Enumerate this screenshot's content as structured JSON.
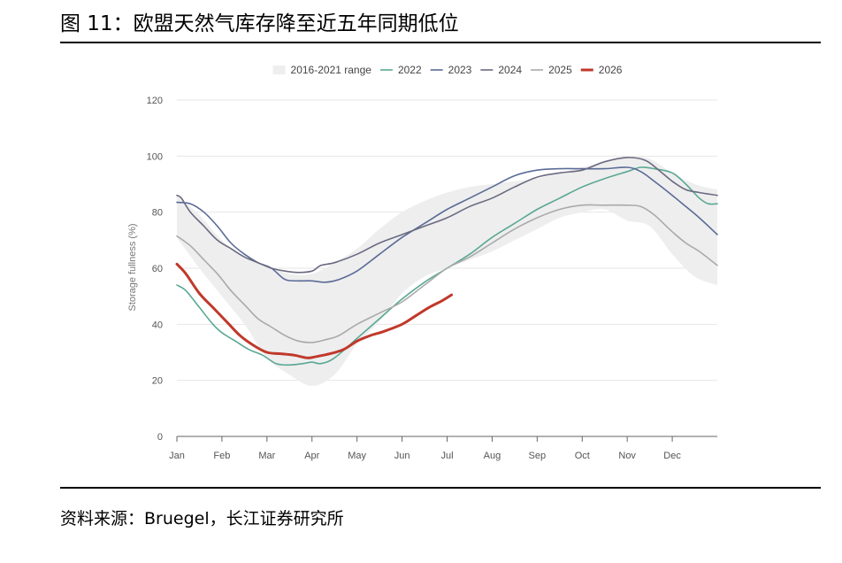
{
  "figure": {
    "title": "图 11：欧盟天然气库存降至近五年同期低位",
    "source": "资料来源：Bruegel，长江证券研究所"
  },
  "chart_data": {
    "type": "line",
    "title": "",
    "xlabel": "",
    "ylabel": "Storage fullness (%)",
    "ylim": [
      0,
      120
    ],
    "yticks": [
      0,
      20,
      40,
      60,
      80,
      100,
      120
    ],
    "xlim": [
      0,
      12
    ],
    "xticks": [
      {
        "x": 0,
        "label": "Jan"
      },
      {
        "x": 1,
        "label": "Feb"
      },
      {
        "x": 2,
        "label": "Mar"
      },
      {
        "x": 3,
        "label": "Apr"
      },
      {
        "x": 4,
        "label": "May"
      },
      {
        "x": 5,
        "label": "Jun"
      },
      {
        "x": 6,
        "label": "Jul"
      },
      {
        "x": 7,
        "label": "Aug"
      },
      {
        "x": 8,
        "label": "Sep"
      },
      {
        "x": 9,
        "label": "Oct"
      },
      {
        "x": 10,
        "label": "Nov"
      },
      {
        "x": 11,
        "label": "Dec"
      }
    ],
    "grid": "horizontal",
    "legend_position": "top",
    "range": {
      "name": "2016-2021 range",
      "color": "#eeeeee",
      "x": [
        0,
        0.5,
        1,
        1.5,
        2,
        2.5,
        3,
        3.5,
        4,
        4.5,
        5,
        5.5,
        6,
        6.5,
        7,
        7.5,
        8,
        8.5,
        9,
        9.5,
        10,
        10.5,
        11,
        11.5,
        12
      ],
      "upper": [
        86,
        79,
        70,
        64,
        61,
        58,
        58,
        62,
        67,
        74,
        80,
        84,
        87,
        89,
        90,
        91,
        92,
        94,
        96,
        98,
        100,
        99,
        94,
        90,
        88
      ],
      "lower": [
        71,
        60,
        50,
        40,
        28,
        22,
        18,
        22,
        33,
        41,
        51,
        57,
        60,
        63,
        66,
        70,
        74,
        78,
        80,
        81,
        77,
        75,
        65,
        57,
        54
      ]
    },
    "series": [
      {
        "name": "2022",
        "color": "#5aa894",
        "width": 1.6,
        "x": [
          0,
          0.2,
          0.5,
          0.8,
          1.0,
          1.3,
          1.6,
          1.9,
          2.2,
          2.5,
          2.8,
          3.0,
          3.2,
          3.5,
          4.0,
          4.5,
          5.0,
          5.5,
          6.0,
          6.5,
          7.0,
          7.5,
          8.0,
          8.5,
          9.0,
          9.5,
          10.0,
          10.3,
          10.6,
          11.0,
          11.3,
          11.6,
          11.8,
          12.0
        ],
        "y": [
          54,
          52,
          46,
          40,
          37,
          34,
          31,
          29,
          26,
          25.5,
          26,
          26.5,
          26,
          28,
          35,
          42,
          49,
          55,
          60,
          65,
          71,
          76,
          81,
          85,
          89,
          92,
          94.5,
          96,
          95.5,
          94,
          90,
          85,
          83,
          83
        ]
      },
      {
        "name": "2023",
        "color": "#5a6b96",
        "width": 1.6,
        "x": [
          0,
          0.3,
          0.6,
          0.9,
          1.2,
          1.5,
          1.8,
          2.1,
          2.4,
          2.7,
          3.0,
          3.3,
          3.6,
          4.0,
          4.5,
          5.0,
          5.5,
          6.0,
          6.5,
          7.0,
          7.5,
          8.0,
          8.5,
          9.0,
          9.5,
          10.0,
          10.3,
          10.6,
          11.0,
          11.3,
          11.6,
          12.0
        ],
        "y": [
          83.5,
          83,
          80,
          75,
          69,
          65,
          62,
          60,
          56,
          55.5,
          55.5,
          55,
          56,
          59,
          65,
          71,
          76,
          81,
          85,
          89,
          93,
          95,
          95.5,
          95.5,
          95.5,
          96,
          94.5,
          91,
          86,
          82,
          78,
          72
        ]
      },
      {
        "name": "2024",
        "color": "#6a6a82",
        "width": 1.6,
        "x": [
          0,
          0.1,
          0.3,
          0.6,
          0.9,
          1.2,
          1.5,
          1.8,
          2.1,
          2.4,
          2.7,
          3.0,
          3.2,
          3.5,
          4.0,
          4.5,
          5.0,
          5.5,
          6.0,
          6.5,
          7.0,
          7.5,
          8.0,
          8.5,
          9.0,
          9.5,
          10.0,
          10.4,
          10.7,
          11.0,
          11.3,
          11.6,
          12.0
        ],
        "y": [
          86,
          85,
          80,
          75,
          70,
          67,
          64,
          62,
          60,
          59,
          58.5,
          59,
          61,
          62,
          65,
          69,
          72,
          75,
          78,
          82,
          85,
          89,
          92.5,
          94,
          95,
          98,
          99.5,
          98.5,
          95,
          91,
          88,
          87,
          86
        ]
      },
      {
        "name": "2025",
        "color": "#aaaaaa",
        "width": 1.6,
        "x": [
          0,
          0.3,
          0.6,
          0.9,
          1.2,
          1.5,
          1.8,
          2.1,
          2.4,
          2.7,
          3.0,
          3.3,
          3.6,
          4.0,
          4.5,
          5.0,
          5.5,
          6.0,
          6.5,
          7.0,
          7.5,
          8.0,
          8.5,
          9.0,
          9.5,
          10.0,
          10.3,
          10.6,
          11.0,
          11.3,
          11.6,
          12.0
        ],
        "y": [
          71.5,
          68,
          63,
          58,
          52,
          47,
          42,
          39,
          36,
          34,
          33.5,
          34.5,
          36,
          40,
          44,
          48,
          54,
          60,
          64,
          69,
          74,
          78,
          81,
          82.5,
          82.5,
          82.5,
          82,
          79,
          73,
          69,
          66,
          61
        ]
      },
      {
        "name": "2026",
        "color": "#c0392b",
        "width": 3,
        "x": [
          0,
          0.2,
          0.5,
          0.8,
          1.1,
          1.4,
          1.7,
          2.0,
          2.3,
          2.6,
          2.9,
          3.1,
          3.4,
          3.7,
          4.0,
          4.3,
          4.6,
          5.0,
          5.3,
          5.6,
          5.9,
          6.1
        ],
        "y": [
          61.5,
          58,
          51,
          46,
          41,
          36,
          32.5,
          30,
          29.5,
          29,
          28,
          28.5,
          29.5,
          31,
          34,
          36,
          37.5,
          40,
          43,
          46,
          48.5,
          50.5
        ]
      }
    ]
  }
}
